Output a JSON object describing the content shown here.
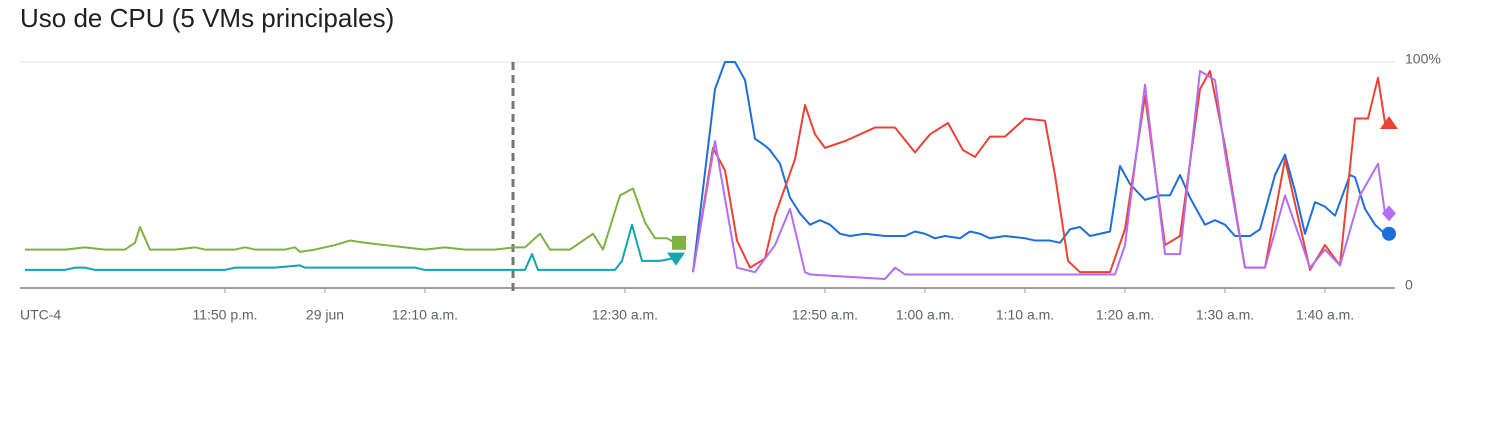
{
  "chart_data": {
    "type": "line",
    "title": "Uso de CPU (5 VMs principales)",
    "timezone": "UTC-4",
    "xlim": [
      -30.5,
      106
    ],
    "xticks": [
      {
        "value": -10,
        "label": "11:50 p.m."
      },
      {
        "value": 0,
        "label": "29 jun"
      },
      {
        "value": 10,
        "label": "12:10 a.m."
      },
      {
        "value": 30,
        "label": "12:30 a.m."
      },
      {
        "value": 50,
        "label": "12:50 a.m."
      },
      {
        "value": 60,
        "label": "1:00 a.m."
      },
      {
        "value": 70,
        "label": "1:10 a.m."
      },
      {
        "value": 80,
        "label": "1:20 a.m."
      },
      {
        "value": 90,
        "label": "1:30 a.m."
      },
      {
        "value": 100,
        "label": "1:40 a.m."
      }
    ],
    "ylim": [
      0,
      100
    ],
    "yticks": [
      0,
      {
        "value": 100,
        "label": "100%"
      }
    ],
    "event_marker_x": 18.8,
    "series": [
      {
        "color": "#7cb342",
        "end_marker": "square",
        "x": [
          -30,
          -26,
          -24,
          -22,
          -20,
          -19,
          -18.5,
          -17.5,
          -15,
          -13,
          -12,
          -9,
          -8,
          -7,
          -4,
          -3,
          -2.5,
          -1,
          1,
          2.5,
          4,
          6,
          8,
          10,
          12,
          14,
          17,
          19,
          20,
          21.5,
          22.5,
          24.5,
          26.8,
          27.8,
          29.5,
          30.8,
          32,
          33,
          34.2,
          35
        ],
        "values": [
          17,
          17,
          18,
          17,
          17,
          20,
          27,
          17,
          17,
          18,
          17,
          17,
          18,
          17,
          17,
          18,
          16,
          17,
          19,
          21,
          20,
          19,
          18,
          17,
          18,
          17,
          17,
          18,
          18,
          24,
          17,
          17,
          24,
          17,
          41,
          44,
          29,
          22,
          22,
          20
        ]
      },
      {
        "color": "#12a4af",
        "end_marker": "triangle-down",
        "x": [
          -30,
          -26,
          -25,
          -24,
          -23,
          -10,
          -9,
          -5,
          -2.5,
          -2,
          9,
          10,
          20,
          20.7,
          21.3,
          29,
          29.7,
          30.7,
          31.7,
          33.5,
          34.7
        ],
        "values": [
          8,
          8,
          9,
          9,
          8,
          8,
          9,
          9,
          10,
          9,
          9,
          8,
          8,
          15,
          8,
          8,
          12,
          28,
          12,
          12,
          13
        ]
      },
      {
        "color": "#1e6fd9",
        "end_marker": "circle",
        "x": [
          36.8,
          39,
          40,
          41,
          42,
          43,
          44,
          44.5,
          45.5,
          46.5,
          47.5,
          48.5,
          49.5,
          50.5,
          51.5,
          52.5,
          54,
          56,
          58,
          59,
          60,
          61,
          62,
          63.5,
          64.5,
          65.5,
          66.5,
          68,
          70,
          71,
          72.5,
          73.5,
          74.5,
          75.5,
          76.5,
          78.5,
          79.5,
          80.5,
          82,
          83.5,
          84.5,
          85.5,
          86.5,
          88,
          89,
          90,
          91,
          92.5,
          93.5,
          95,
          96,
          97,
          98,
          99,
          100,
          101,
          102.5,
          103,
          104,
          105,
          106
        ],
        "values": [
          7,
          88,
          100,
          100,
          92,
          66,
          63,
          61,
          55,
          40,
          33,
          28,
          30,
          28,
          24,
          23,
          24,
          23,
          23,
          25,
          24,
          22,
          23,
          22,
          25,
          24,
          22,
          23,
          22,
          21,
          21,
          20,
          26,
          27,
          23,
          25,
          54,
          46,
          39,
          41,
          41,
          50,
          40,
          28,
          30,
          28,
          23,
          23,
          26,
          50,
          59,
          43,
          24,
          38,
          36,
          32,
          50,
          49,
          35,
          28,
          24
        ]
      },
      {
        "color": "#ea4335",
        "end_marker": "triangle-up",
        "x": [
          36.8,
          38.8,
          40,
          41.2,
          42.5,
          44,
          45,
          47,
          48,
          49,
          50,
          52,
          55,
          57,
          59,
          60.5,
          62.3,
          63.8,
          65,
          66.5,
          68,
          70,
          72,
          73,
          74.3,
          75.5,
          78.5,
          80,
          82,
          84,
          85.5,
          87.5,
          88.5,
          90,
          92,
          94,
          96,
          98.5,
          100,
          101.5,
          103,
          104.3,
          105.3,
          106
        ],
        "values": [
          7,
          62,
          52,
          21,
          9,
          13,
          32,
          57,
          81,
          68,
          62,
          65,
          71,
          71,
          60,
          68,
          73,
          61,
          58,
          67,
          67,
          75,
          74,
          50,
          12,
          7,
          7,
          26,
          85,
          19,
          23,
          88,
          96,
          63,
          9,
          9,
          57,
          8,
          19,
          10,
          75,
          75,
          93,
          73
        ]
      },
      {
        "color": "#b36ef5",
        "end_marker": "diamond",
        "x": [
          36.8,
          39,
          41.2,
          43,
          45,
          46.5,
          48,
          48.5,
          56,
          57,
          58,
          79,
          80,
          82,
          84,
          85.5,
          87.5,
          89,
          90,
          92,
          94,
          96,
          98.5,
          100,
          101.5,
          103.5,
          105.3,
          106
        ],
        "values": [
          7,
          65,
          9,
          7,
          19,
          35,
          7,
          6,
          4,
          9,
          6,
          6,
          19,
          90,
          15,
          15,
          96,
          92,
          60,
          9,
          9,
          41,
          9,
          17,
          10,
          41,
          55,
          33
        ]
      }
    ]
  }
}
